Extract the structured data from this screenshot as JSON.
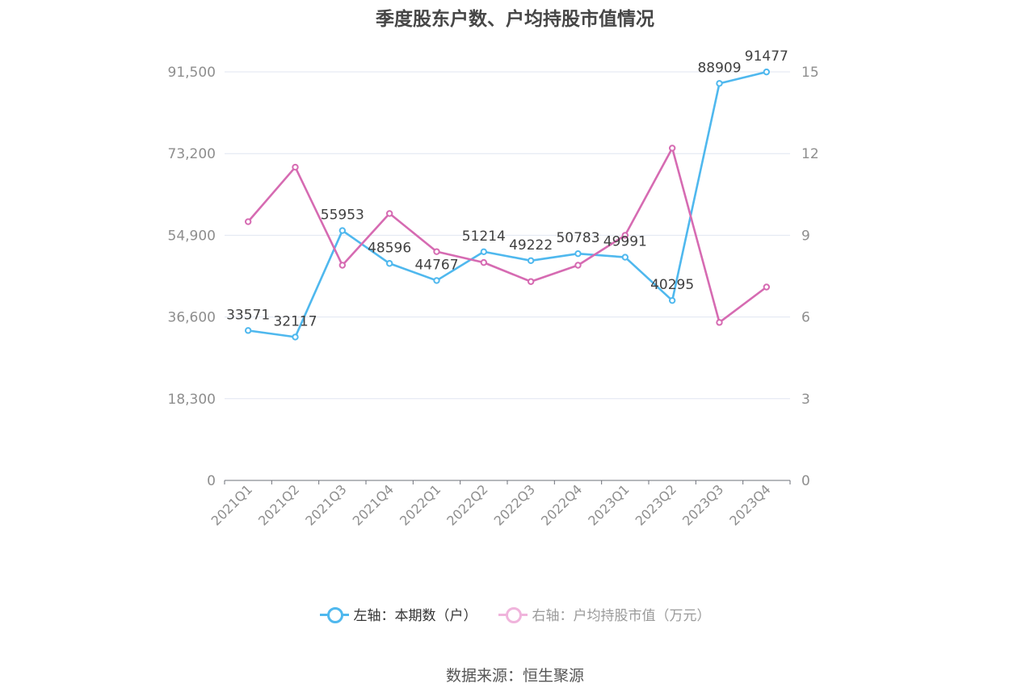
{
  "chart_data": {
    "type": "line",
    "title": "季度股东户数、户均持股市值情况",
    "categories": [
      "2021Q1",
      "2021Q2",
      "2021Q3",
      "2021Q4",
      "2022Q1",
      "2022Q2",
      "2022Q3",
      "2022Q4",
      "2023Q1",
      "2023Q2",
      "2023Q3",
      "2023Q4"
    ],
    "series": [
      {
        "name": "左轴：本期数（户）",
        "axis": "left",
        "color": "#4fb8ee",
        "values": [
          33571,
          32117,
          55953,
          48596,
          44767,
          51214,
          49222,
          50783,
          49991,
          40295,
          88909,
          91477
        ],
        "labels": [
          "33571",
          "32117",
          "55953",
          "48596",
          "44767",
          "51214",
          "49222",
          "50783",
          "49991",
          "40295",
          "88909",
          "91477"
        ]
      },
      {
        "name": "右轴：户均持股市值（万元）",
        "axis": "right",
        "color": "#d66bb2",
        "values": [
          9.5,
          11.5,
          7.9,
          9.8,
          8.4,
          8.0,
          7.3,
          7.9,
          9.0,
          12.2,
          5.8,
          7.1
        ]
      }
    ],
    "y_left": {
      "ticks": [
        "0",
        "18,300",
        "36,600",
        "54,900",
        "73,200",
        "91,500"
      ],
      "ylim": [
        0,
        91500
      ]
    },
    "y_right": {
      "ticks": [
        "0",
        "3",
        "6",
        "9",
        "12",
        "15"
      ],
      "ylim": [
        0,
        15
      ]
    },
    "grid": true,
    "legend_position": "bottom"
  },
  "legend": {
    "left": "左轴：本期数（户）",
    "right": "右轴：户均持股市值（万元）"
  },
  "source": "数据来源：恒生聚源"
}
